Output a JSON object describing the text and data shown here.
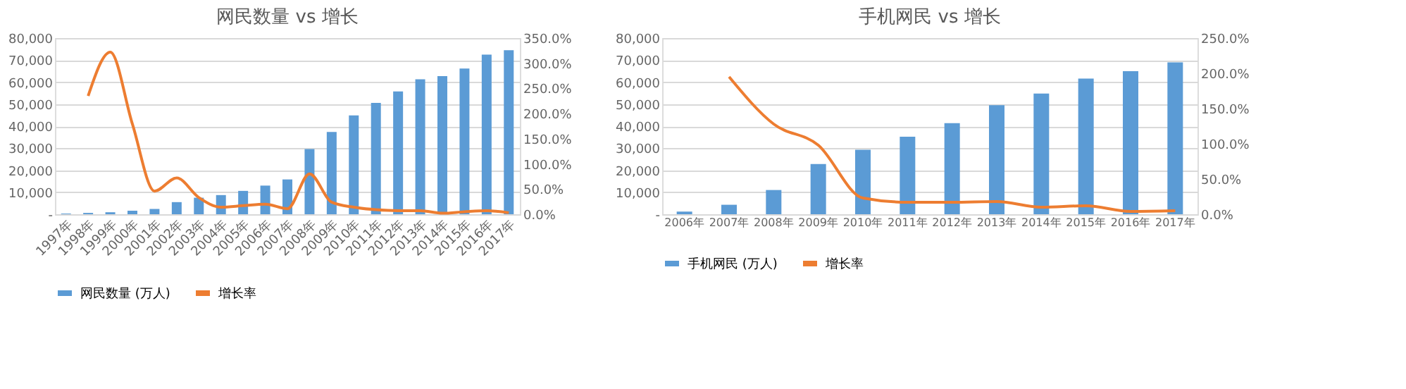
{
  "chart_data": [
    {
      "type": "bar",
      "title": "网民数量 vs 增长",
      "categories": [
        "1997年",
        "1998年",
        "1999年",
        "2000年",
        "2001年",
        "2002年",
        "2003年",
        "2004年",
        "2005年",
        "2006年",
        "2007年",
        "2008年",
        "2009年",
        "2010年",
        "2011年",
        "2012年",
        "2013年",
        "2014年",
        "2015年",
        "2016年",
        "2017年"
      ],
      "series": [
        {
          "name": "网民数量 (万人)",
          "color": "#5b9bd5",
          "values": [
            300,
            600,
            900,
            1600,
            2400,
            5500,
            7500,
            8700,
            10600,
            13000,
            15800,
            29600,
            37400,
            44900,
            50600,
            55800,
            61300,
            62700,
            66200,
            72500,
            74500
          ]
        },
        {
          "name": "增长率",
          "type": "line",
          "axis": "y2",
          "color": "#ed7d31",
          "values": [
            null,
            235,
            322,
            179,
            46,
            72,
            33,
            14,
            17,
            20,
            11,
            80,
            24,
            14,
            9,
            7,
            7,
            2,
            5,
            7,
            3
          ]
        }
      ],
      "ylim": [
        0,
        80000
      ],
      "yticks": [
        {
          "value": 0,
          "label": "-"
        },
        {
          "value": 10000,
          "label": "10,000"
        },
        {
          "value": 20000,
          "label": "20,000"
        },
        {
          "value": 30000,
          "label": "30,000"
        },
        {
          "value": 40000,
          "label": "40,000"
        },
        {
          "value": 50000,
          "label": "50,000"
        },
        {
          "value": 60000,
          "label": "60,000"
        },
        {
          "value": 70000,
          "label": "70,000"
        },
        {
          "value": 80000,
          "label": "80,000"
        }
      ],
      "y2lim": [
        0,
        350
      ],
      "y2ticks": [
        {
          "value": 0,
          "label": "0.0%"
        },
        {
          "value": 50,
          "label": "50.0%"
        },
        {
          "value": 100,
          "label": "100.0%"
        },
        {
          "value": 150,
          "label": "150.0%"
        },
        {
          "value": 200,
          "label": "200.0%"
        },
        {
          "value": 250,
          "label": "250.0%"
        },
        {
          "value": 300,
          "label": "300.0%"
        },
        {
          "value": 350,
          "label": "350.0%"
        }
      ],
      "grid": "y",
      "legend": "bottom",
      "marker": "none",
      "line_style": "solid"
    },
    {
      "type": "bar",
      "title": "手机网民 vs 增长",
      "categories": [
        "2006年",
        "2007年",
        "2008年",
        "2009年",
        "2010年",
        "2011年",
        "2012年",
        "2013年",
        "2014年",
        "2015年",
        "2016年",
        "2017年"
      ],
      "series": [
        {
          "name": "手机网民 (万人)",
          "color": "#5b9bd5",
          "values": [
            1200,
            4300,
            11000,
            22800,
            29300,
            35200,
            41400,
            49500,
            54800,
            61600,
            65000,
            69000
          ]
        },
        {
          "name": "增长率",
          "type": "line",
          "axis": "y2",
          "color": "#ed7d31",
          "values": [
            null,
            195,
            128,
            98,
            23,
            17,
            17,
            18,
            10,
            12,
            4,
            5
          ]
        }
      ],
      "ylim": [
        0,
        80000
      ],
      "yticks": [
        {
          "value": 0,
          "label": "-"
        },
        {
          "value": 10000,
          "label": "10,000"
        },
        {
          "value": 20000,
          "label": "20,000"
        },
        {
          "value": 30000,
          "label": "30,000"
        },
        {
          "value": 40000,
          "label": "40,000"
        },
        {
          "value": 50000,
          "label": "50,000"
        },
        {
          "value": 60000,
          "label": "60,000"
        },
        {
          "value": 70000,
          "label": "70,000"
        },
        {
          "value": 80000,
          "label": "80,000"
        }
      ],
      "y2lim": [
        0,
        250
      ],
      "y2ticks": [
        {
          "value": 0,
          "label": "0.0%"
        },
        {
          "value": 50,
          "label": "50.0%"
        },
        {
          "value": 100,
          "label": "100.0%"
        },
        {
          "value": 150,
          "label": "150.0%"
        },
        {
          "value": 200,
          "label": "200.0%"
        },
        {
          "value": 250,
          "label": "250.0%"
        }
      ],
      "grid": "y",
      "legend": "bottom",
      "marker": "none",
      "line_style": "solid"
    }
  ]
}
